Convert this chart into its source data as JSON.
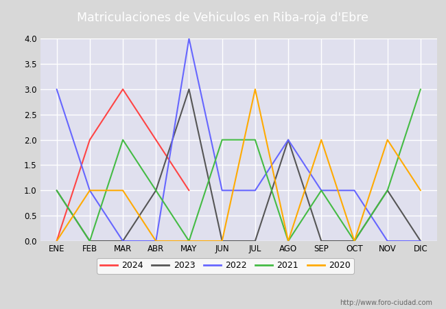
{
  "title_text": "Matriculaciones de Vehiculos en Riba-roja d'Ebre",
  "months": [
    "ENE",
    "FEB",
    "MAR",
    "ABR",
    "MAY",
    "JUN",
    "JUL",
    "AGO",
    "SEP",
    "OCT",
    "NOV",
    "DIC"
  ],
  "series": {
    "2024": [
      0,
      2,
      3,
      2,
      1,
      null,
      null,
      null,
      null,
      null,
      null,
      null
    ],
    "2023": [
      1,
      0,
      0,
      1,
      3,
      0,
      0,
      2,
      0,
      0,
      1,
      0
    ],
    "2022": [
      3,
      1,
      0,
      0,
      4,
      1,
      1,
      2,
      1,
      1,
      0,
      0
    ],
    "2021": [
      1,
      0,
      2,
      1,
      0,
      2,
      2,
      0,
      1,
      0,
      1,
      3
    ],
    "2020": [
      0,
      1,
      1,
      0,
      0,
      0,
      3,
      0,
      2,
      0,
      2,
      1
    ]
  },
  "colors": {
    "2024": "#ff4444",
    "2023": "#555555",
    "2022": "#6666ff",
    "2021": "#44bb44",
    "2020": "#ffaa00"
  },
  "ylim": [
    0,
    4.0
  ],
  "yticks": [
    0.0,
    0.5,
    1.0,
    1.5,
    2.0,
    2.5,
    3.0,
    3.5,
    4.0
  ],
  "background_color": "#d8d8d8",
  "plot_bg_color": "#e0e0ee",
  "header_color": "#4472c4",
  "url_text": "http://www.foro-ciudad.com",
  "legend_order": [
    "2024",
    "2023",
    "2022",
    "2021",
    "2020"
  ]
}
